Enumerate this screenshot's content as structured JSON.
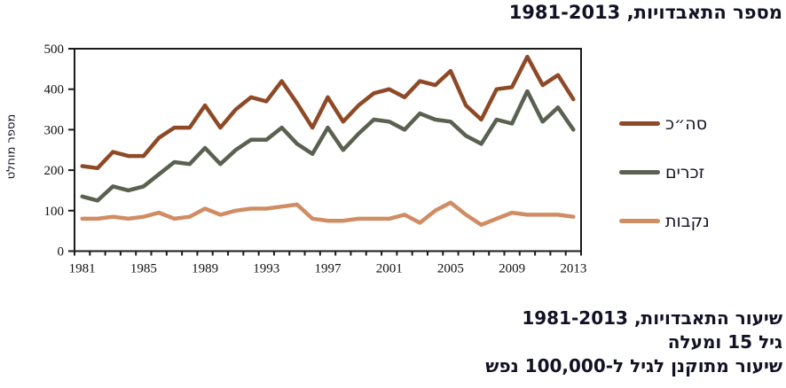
{
  "title": "מספר התאבדויות, 1981-2013",
  "y_axis_title": "מספר מוחלט",
  "footer_lines": [
    "שיעור התאבדויות, 1981-2013",
    "גיל 15 ומעלה",
    "שיעור מתוקנן לגיל ל-100,000 נפש"
  ],
  "colors": {
    "total": "#8E4A27",
    "males": "#5A6150",
    "females": "#D08C63",
    "axis": "#1a1a1a",
    "text": "#121226"
  },
  "legend": [
    {
      "label": "סה״כ",
      "series": "total"
    },
    {
      "label": "זכרים",
      "series": "males"
    },
    {
      "label": "נקבות",
      "series": "females"
    }
  ],
  "chart_data": {
    "type": "line",
    "title": "מספר התאבדויות, 1981-2013",
    "xlabel": "",
    "ylabel": "מספר מוחלט",
    "x": [
      1981,
      1982,
      1983,
      1984,
      1985,
      1986,
      1987,
      1988,
      1989,
      1990,
      1991,
      1992,
      1993,
      1994,
      1995,
      1996,
      1997,
      1998,
      1999,
      2000,
      2001,
      2002,
      2003,
      2004,
      2005,
      2006,
      2007,
      2008,
      2009,
      2010,
      2011,
      2012,
      2013
    ],
    "x_tick_labels": [
      "1981",
      "1985",
      "1989",
      "1993",
      "1997",
      "2001",
      "2005",
      "2009",
      "2013"
    ],
    "ylim": [
      0,
      500
    ],
    "y_ticks": [
      0,
      100,
      200,
      300,
      400,
      500
    ],
    "grid": false,
    "legend_position": "right",
    "series": [
      {
        "name": "סה״כ",
        "color": "#8E4A27",
        "values": [
          210,
          205,
          245,
          235,
          235,
          280,
          305,
          305,
          360,
          305,
          350,
          380,
          370,
          420,
          365,
          305,
          380,
          320,
          360,
          390,
          400,
          380,
          420,
          410,
          445,
          360,
          325,
          400,
          405,
          480,
          410,
          435,
          375
        ]
      },
      {
        "name": "זכרים",
        "color": "#5A6150",
        "values": [
          135,
          125,
          160,
          150,
          160,
          190,
          220,
          215,
          255,
          215,
          250,
          275,
          275,
          305,
          265,
          240,
          305,
          250,
          290,
          325,
          320,
          300,
          340,
          325,
          320,
          285,
          265,
          325,
          315,
          395,
          320,
          355,
          300
        ]
      },
      {
        "name": "נקבות",
        "color": "#D08C63",
        "values": [
          80,
          80,
          85,
          80,
          85,
          95,
          80,
          85,
          105,
          90,
          100,
          105,
          105,
          110,
          115,
          80,
          75,
          75,
          80,
          80,
          80,
          90,
          70,
          100,
          120,
          90,
          65,
          80,
          95,
          90,
          90,
          90,
          85
        ]
      }
    ]
  }
}
